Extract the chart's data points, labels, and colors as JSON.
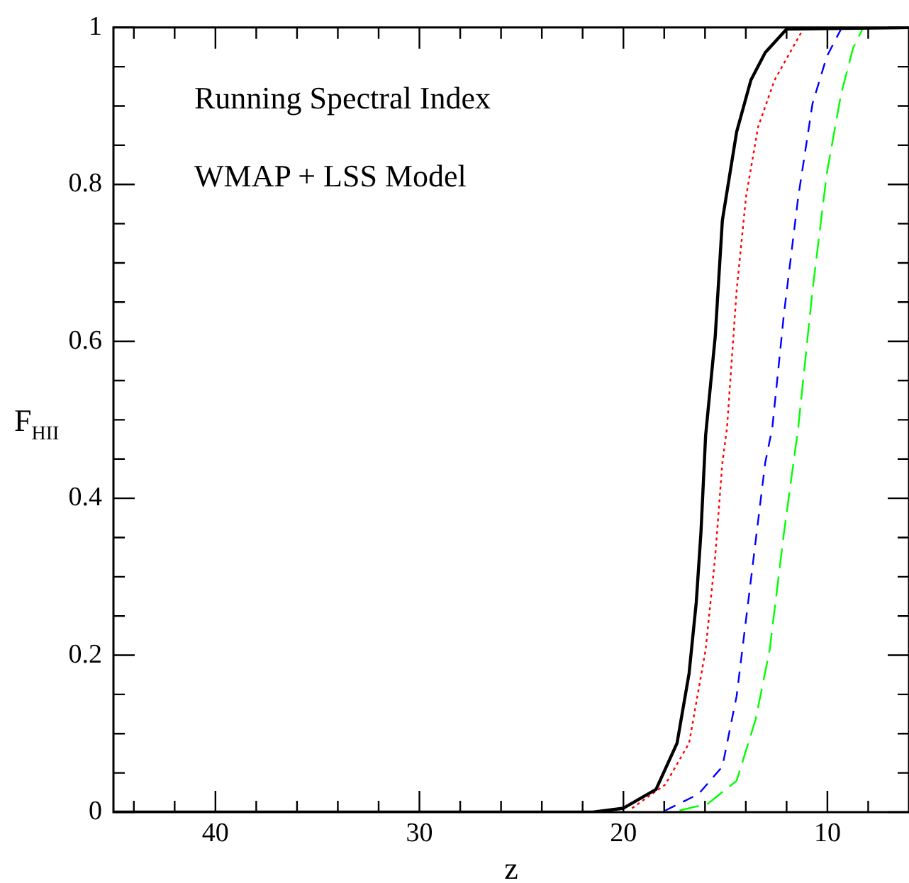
{
  "chart_data": {
    "type": "line",
    "xlabel": "z",
    "ylabel": "F$_{HII}$",
    "annotations": [
      "Running Spectral Index",
      "WMAP + LSS Model"
    ],
    "xlim": [
      45,
      6
    ],
    "ylim": [
      0,
      1
    ],
    "xticks": [
      {
        "value": 44,
        "label": null
      },
      {
        "value": 42,
        "label": null
      },
      40,
      {
        "value": 38,
        "label": null
      },
      {
        "value": 36,
        "label": null
      },
      {
        "value": 34,
        "label": null
      },
      {
        "value": 32,
        "label": null
      },
      30,
      {
        "value": 28,
        "label": null
      },
      {
        "value": 26,
        "label": null
      },
      {
        "value": 24,
        "label": null
      },
      {
        "value": 22,
        "label": null
      },
      20,
      {
        "value": 18,
        "label": null
      },
      {
        "value": 16,
        "label": null
      },
      {
        "value": 14,
        "label": null
      },
      {
        "value": 12,
        "label": null
      },
      10,
      {
        "value": 8,
        "label": null
      }
    ],
    "yticks": [
      0,
      {
        "value": 0.05,
        "label": null
      },
      {
        "value": 0.1,
        "label": null
      },
      {
        "value": 0.15,
        "label": null
      },
      0.2,
      {
        "value": 0.25,
        "label": null
      },
      {
        "value": 0.3,
        "label": null
      },
      {
        "value": 0.35,
        "label": null
      },
      0.4,
      {
        "value": 0.45,
        "label": null
      },
      {
        "value": 0.5,
        "label": null
      },
      {
        "value": 0.55,
        "label": null
      },
      0.6,
      {
        "value": 0.65,
        "label": null
      },
      {
        "value": 0.7,
        "label": null
      },
      {
        "value": 0.75,
        "label": null
      },
      0.8,
      {
        "value": 0.85,
        "label": null
      },
      {
        "value": 0.9,
        "label": null
      },
      {
        "value": 0.95,
        "label": null
      },
      1
    ],
    "grid": false,
    "legend": false,
    "marker": "none",
    "series": [
      {
        "color": "#000000",
        "line_style": "solid",
        "x": [
          45,
          21.5,
          20,
          18.4,
          17.37,
          16.78,
          16.43,
          16.2,
          15.97,
          15.5,
          15.15,
          14.45,
          13.75,
          13.05,
          12.0,
          6
        ],
        "values": [
          0,
          0,
          0.005,
          0.029,
          0.088,
          0.177,
          0.267,
          0.356,
          0.48,
          0.606,
          0.754,
          0.867,
          0.933,
          0.968,
          0.998,
          1
        ]
      },
      {
        "color": "#ff0000",
        "line_style": "dotted",
        "x": [
          19.58,
          17.95,
          16.78,
          15.97,
          15.5,
          15.15,
          14.92,
          14.45,
          13.99,
          13.4,
          12.59,
          11.19
        ],
        "values": [
          0.005,
          0.035,
          0.088,
          0.207,
          0.326,
          0.445,
          0.49,
          0.665,
          0.784,
          0.873,
          0.933,
          0.998
        ]
      },
      {
        "color": "#0000ff",
        "line_style": "dashed",
        "x": [
          17.95,
          16.32,
          15.15,
          14.45,
          13.75,
          13.05,
          12.7,
          12.13,
          11.43,
          10.73,
          10.03,
          9.33
        ],
        "values": [
          0.002,
          0.023,
          0.058,
          0.148,
          0.296,
          0.445,
          0.49,
          0.635,
          0.784,
          0.903,
          0.963,
          0.998
        ]
      },
      {
        "color": "#00ff00",
        "line_style": "longdash",
        "x": [
          17.25,
          15.85,
          14.45,
          13.52,
          12.83,
          12.13,
          11.43,
          10.73,
          10.03,
          9.33,
          8.74,
          8.28
        ],
        "values": [
          0.002,
          0.011,
          0.04,
          0.118,
          0.207,
          0.356,
          0.49,
          0.665,
          0.814,
          0.915,
          0.974,
          0.998
        ]
      }
    ]
  }
}
